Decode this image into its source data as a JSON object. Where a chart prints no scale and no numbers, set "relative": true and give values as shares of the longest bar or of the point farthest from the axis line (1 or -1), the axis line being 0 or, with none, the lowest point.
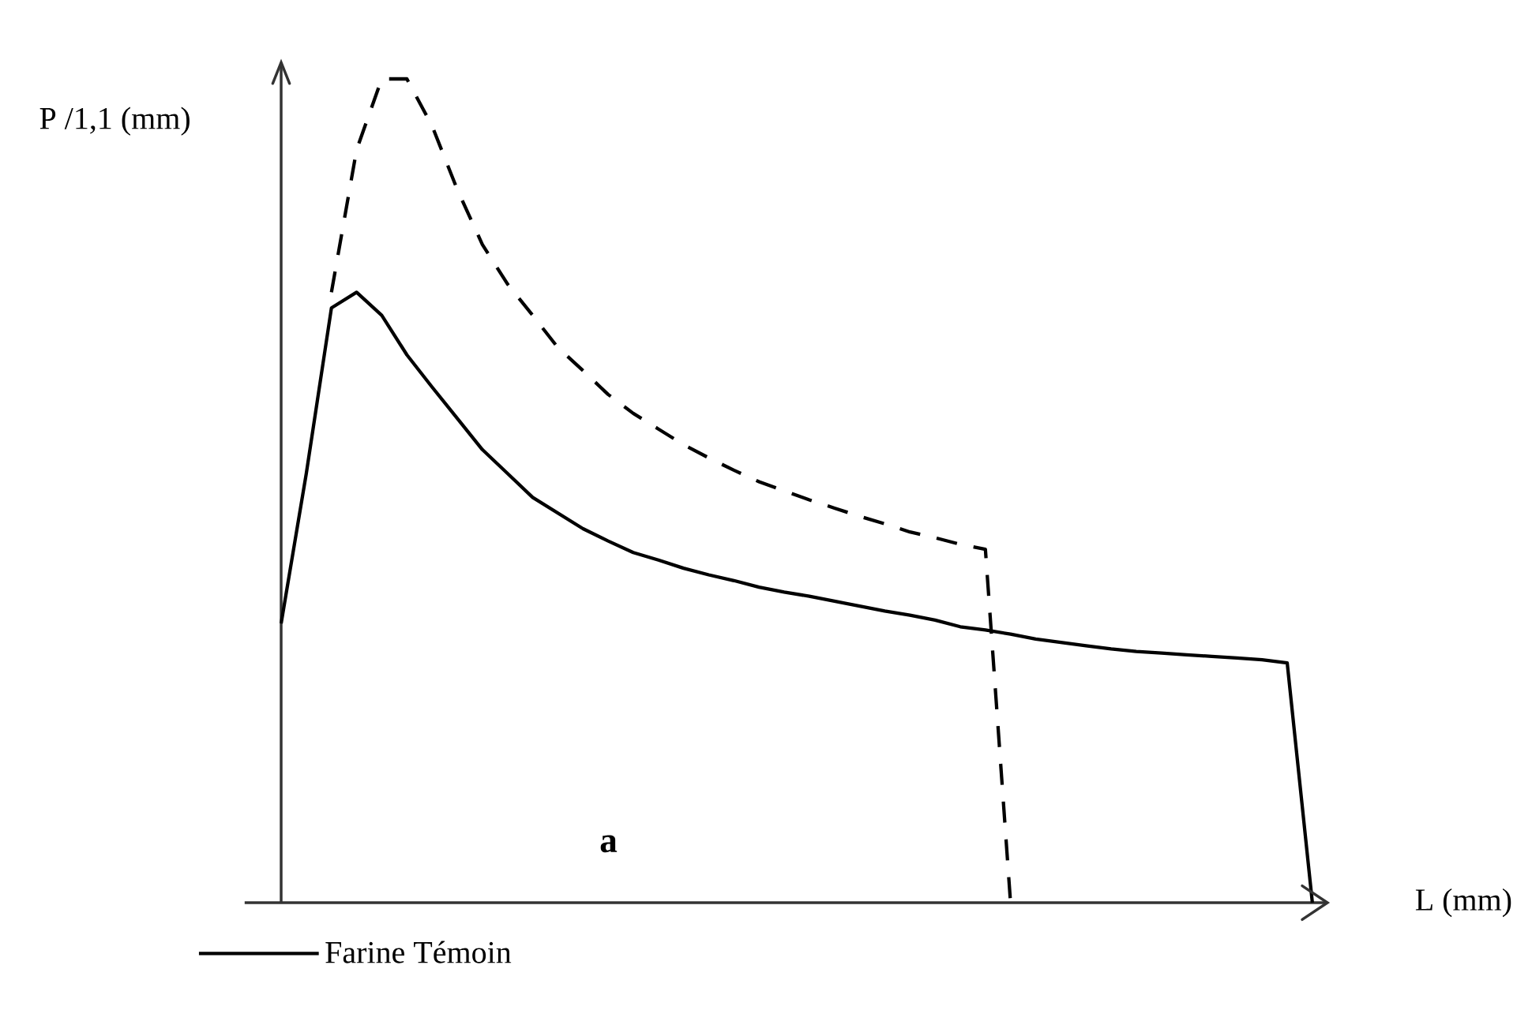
{
  "chart_data": {
    "type": "line",
    "relative": true,
    "xlabel": "L (mm)",
    "ylabel": "P /1,1 (mm)",
    "annotations": [
      "a"
    ],
    "legend": "bottom left",
    "categories": [
      null,
      null,
      null,
      null,
      null,
      null,
      null,
      null,
      null,
      null,
      null,
      null,
      null,
      null,
      null,
      null,
      null,
      null,
      null,
      null,
      null,
      null,
      null,
      null,
      null,
      null,
      null,
      null,
      null,
      null,
      null,
      null,
      null,
      null,
      null,
      null,
      null,
      null,
      null,
      null,
      null,
      null
    ],
    "series": [
      {
        "name": "Farine Témoin",
        "color": "#000000",
        "line_style": "solid",
        "values": [
          0.339,
          0.521,
          0.722,
          0.741,
          0.713,
          0.665,
          0.626,
          0.588,
          0.55,
          0.521,
          0.492,
          0.473,
          0.454,
          0.439,
          0.425,
          0.416,
          0.406,
          0.398,
          0.391,
          0.383,
          0.377,
          0.372,
          0.366,
          0.36,
          0.354,
          0.349,
          0.343,
          0.335,
          0.331,
          0.326,
          0.32,
          0.316,
          0.312,
          0.308,
          0.305,
          0.303,
          0.301,
          0.299,
          0.297,
          0.295,
          0.291,
          0
        ]
      },
      {
        "color": "#000000",
        "line_style": "dashed",
        "values": [
          null,
          null,
          0.741,
          0.914,
          1,
          1,
          0.943,
          0.866,
          0.799,
          0.751,
          0.713,
          0.674,
          0.646,
          0.617,
          0.594,
          0.575,
          0.556,
          0.54,
          0.525,
          0.511,
          0.5,
          0.489,
          0.479,
          0.469,
          0.46,
          0.45,
          0.443,
          0.435,
          0.429,
          0,
          null,
          null,
          null,
          null,
          null,
          null,
          null,
          null,
          null,
          null,
          null,
          null
        ]
      }
    ]
  }
}
